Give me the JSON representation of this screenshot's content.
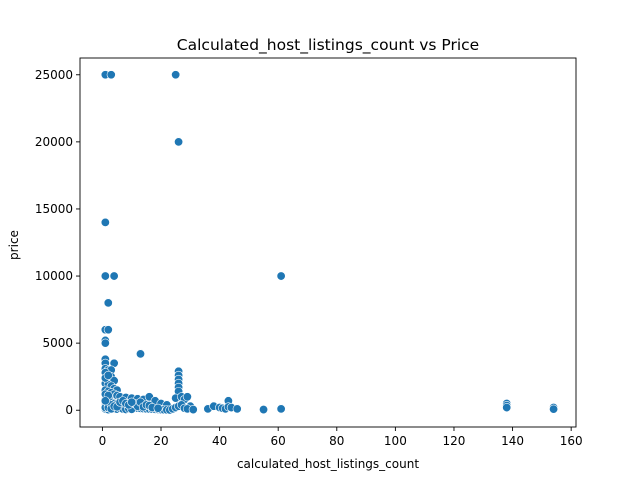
{
  "chart_data": {
    "type": "scatter",
    "title": "Calculated_host_listings_count vs Price",
    "xlabel": "calculated_host_listings_count",
    "ylabel": "price",
    "xlim": [
      -7.65,
      161.65
    ],
    "ylim": [
      -1250,
      26250
    ],
    "xticks": [
      0,
      20,
      40,
      60,
      80,
      100,
      120,
      140,
      160
    ],
    "yticks": [
      0,
      5000,
      10000,
      15000,
      20000,
      25000
    ],
    "xtick_labels": [
      "0",
      "20",
      "40",
      "60",
      "80",
      "100",
      "120",
      "140",
      "160"
    ],
    "ytick_labels": [
      "0",
      "5000",
      "10000",
      "15000",
      "20000",
      "25000"
    ],
    "grid": false,
    "color": "#1f77b4",
    "points": [
      [
        1,
        25000
      ],
      [
        3,
        25000
      ],
      [
        25,
        25000
      ],
      [
        26,
        20000
      ],
      [
        1,
        14000
      ],
      [
        1,
        10000
      ],
      [
        4,
        10000
      ],
      [
        61,
        10000
      ],
      [
        2,
        8000
      ],
      [
        1,
        6000
      ],
      [
        2,
        6000
      ],
      [
        1,
        5200
      ],
      [
        1,
        5000
      ],
      [
        13,
        4200
      ],
      [
        1,
        3800
      ],
      [
        1,
        3500
      ],
      [
        4,
        3500
      ],
      [
        1,
        3100
      ],
      [
        2,
        3000
      ],
      [
        3,
        3000
      ],
      [
        26,
        2900
      ],
      [
        26,
        2600
      ],
      [
        26,
        2300
      ],
      [
        3,
        2500
      ],
      [
        4,
        2200
      ],
      [
        1,
        2000
      ],
      [
        2,
        1900
      ],
      [
        3,
        1800
      ],
      [
        4,
        1600
      ],
      [
        5,
        1500
      ],
      [
        26,
        2000
      ],
      [
        26,
        1700
      ],
      [
        26,
        1400
      ],
      [
        1,
        1500
      ],
      [
        2,
        1400
      ],
      [
        3,
        1300
      ],
      [
        4,
        1200
      ],
      [
        5,
        1100
      ],
      [
        6,
        1000
      ],
      [
        8,
        950
      ],
      [
        10,
        900
      ],
      [
        12,
        850
      ],
      [
        14,
        800
      ],
      [
        16,
        1000
      ],
      [
        18,
        700
      ],
      [
        20,
        500
      ],
      [
        22,
        400
      ],
      [
        25,
        900
      ],
      [
        27,
        1000
      ],
      [
        28,
        800
      ],
      [
        29,
        1000
      ],
      [
        30,
        300
      ],
      [
        1,
        800
      ],
      [
        2,
        700
      ],
      [
        3,
        600
      ],
      [
        4,
        500
      ],
      [
        5,
        450
      ],
      [
        6,
        400
      ],
      [
        7,
        350
      ],
      [
        8,
        300
      ],
      [
        9,
        250
      ],
      [
        10,
        200
      ],
      [
        11,
        180
      ],
      [
        12,
        160
      ],
      [
        13,
        140
      ],
      [
        14,
        120
      ],
      [
        15,
        100
      ],
      [
        16,
        90
      ],
      [
        17,
        80
      ],
      [
        18,
        70
      ],
      [
        19,
        60
      ],
      [
        20,
        50
      ],
      [
        21,
        40
      ],
      [
        22,
        30
      ],
      [
        23,
        20
      ],
      [
        24,
        100
      ],
      [
        25,
        200
      ],
      [
        26,
        300
      ],
      [
        27,
        400
      ],
      [
        28,
        150
      ],
      [
        29,
        100
      ],
      [
        31,
        50
      ],
      [
        1,
        100
      ],
      [
        2,
        50
      ],
      [
        3,
        200
      ],
      [
        4,
        100
      ],
      [
        5,
        80
      ],
      [
        6,
        150
      ],
      [
        7,
        90
      ],
      [
        8,
        60
      ],
      [
        9,
        120
      ],
      [
        10,
        70
      ],
      [
        11,
        500
      ],
      [
        12,
        300
      ],
      [
        13,
        600
      ],
      [
        14,
        250
      ],
      [
        15,
        400
      ],
      [
        16,
        350
      ],
      [
        17,
        200
      ],
      [
        19,
        150
      ],
      [
        1,
        400
      ],
      [
        1,
        300
      ],
      [
        1,
        200
      ],
      [
        2,
        300
      ],
      [
        2,
        200
      ],
      [
        3,
        400
      ],
      [
        3,
        100
      ],
      [
        4,
        300
      ],
      [
        5,
        250
      ],
      [
        6,
        600
      ],
      [
        7,
        700
      ],
      [
        8,
        500
      ],
      [
        9,
        400
      ],
      [
        10,
        600
      ],
      [
        1,
        2800
      ],
      [
        1,
        2400
      ],
      [
        1,
        1200
      ],
      [
        2,
        1100
      ],
      [
        1,
        700
      ],
      [
        2,
        2600
      ],
      [
        36,
        100
      ],
      [
        38,
        300
      ],
      [
        40,
        200
      ],
      [
        41,
        150
      ],
      [
        42,
        100
      ],
      [
        43,
        700
      ],
      [
        43,
        250
      ],
      [
        44,
        200
      ],
      [
        46,
        100
      ],
      [
        55,
        50
      ],
      [
        61,
        100
      ],
      [
        138,
        500
      ],
      [
        138,
        350
      ],
      [
        138,
        200
      ],
      [
        154,
        200
      ],
      [
        154,
        80
      ]
    ]
  }
}
